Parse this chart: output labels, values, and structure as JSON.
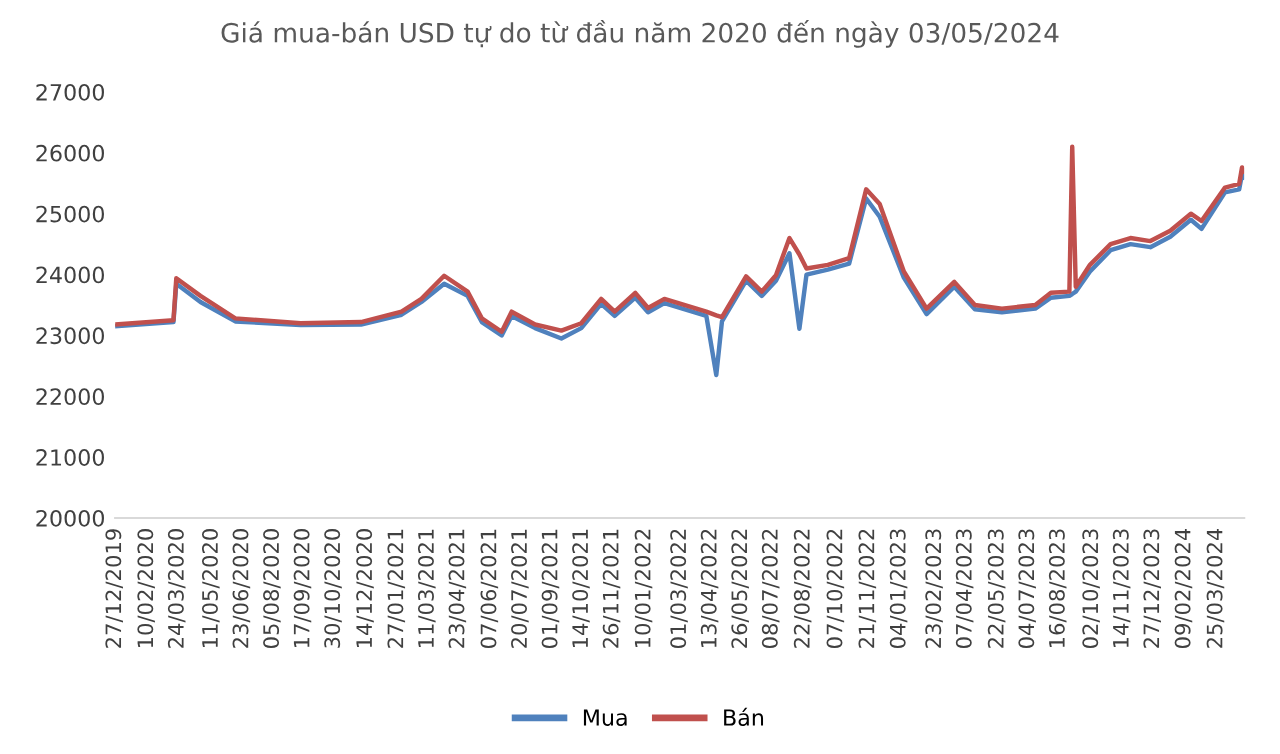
{
  "chart_data": {
    "type": "line",
    "title": "Giá mua-bán USD tự do từ đầu năm 2020 đến ngày 03/05/2024",
    "x": [
      "2019-12-27",
      "2020-03-18",
      "2020-03-22",
      "2020-04-25",
      "2020-06-13",
      "2020-09-13",
      "2020-12-07",
      "2021-02-02",
      "2021-03-02",
      "2021-04-03",
      "2021-05-06",
      "2021-05-26",
      "2021-06-23",
      "2021-07-07",
      "2021-08-09",
      "2021-09-15",
      "2021-10-13",
      "2021-11-10",
      "2021-11-29",
      "2021-12-28",
      "2022-01-15",
      "2022-02-07",
      "2022-04-07",
      "2022-04-21",
      "2022-04-29",
      "2022-06-02",
      "2022-06-24",
      "2022-07-14",
      "2022-08-02",
      "2022-08-16",
      "2022-08-26",
      "2022-09-25",
      "2022-10-25",
      "2022-11-18",
      "2022-12-07",
      "2023-01-10",
      "2023-02-11",
      "2023-03-22",
      "2023-04-20",
      "2023-05-28",
      "2023-07-14",
      "2023-08-05",
      "2023-08-31",
      "2023-09-04",
      "2023-09-09",
      "2023-09-29",
      "2023-10-28",
      "2023-11-25",
      "2023-12-23",
      "2024-01-20",
      "2024-02-18",
      "2024-03-04",
      "2024-04-06",
      "2024-04-26",
      "2024-04-30",
      "2024-05-03"
    ],
    "series": [
      {
        "name": "Mua",
        "color": "#4f81bd",
        "values": [
          23150,
          23220,
          23850,
          23550,
          23230,
          23170,
          23180,
          23340,
          23550,
          23850,
          23650,
          23220,
          23000,
          23320,
          23120,
          22950,
          23120,
          23520,
          23320,
          23620,
          23380,
          23530,
          23320,
          22350,
          23230,
          23900,
          23650,
          23900,
          24350,
          23110,
          24000,
          24080,
          24180,
          25250,
          24950,
          23950,
          23350,
          23800,
          23430,
          23380,
          23440,
          23620,
          23650,
          23680,
          23720,
          24050,
          24400,
          24500,
          24450,
          24620,
          24900,
          24750,
          25350,
          25400,
          25650,
          25600
        ]
      },
      {
        "name": "Bán",
        "color": "#c0504d",
        "values": [
          23180,
          23250,
          23940,
          23650,
          23280,
          23200,
          23220,
          23390,
          23600,
          23980,
          23720,
          23280,
          23060,
          23390,
          23180,
          23080,
          23200,
          23600,
          23390,
          23700,
          23450,
          23600,
          23390,
          23330,
          23300,
          23970,
          23720,
          23990,
          24600,
          24330,
          24100,
          24160,
          24270,
          25400,
          25160,
          24050,
          23440,
          23880,
          23500,
          23440,
          23500,
          23700,
          23720,
          26100,
          23800,
          24160,
          24500,
          24600,
          24550,
          24720,
          25000,
          24880,
          25430,
          25490,
          25760,
          25700
        ]
      }
    ],
    "xlim": [
      "2019-12-27",
      "2024-05-03"
    ],
    "xticks": [
      {
        "value": "2019-12-27",
        "label": "27/12/2019"
      },
      {
        "value": "2020-02-10",
        "label": "10/02/2020"
      },
      {
        "value": "2020-03-24",
        "label": "24/03/2020"
      },
      {
        "value": "2020-05-11",
        "label": "11/05/2020"
      },
      {
        "value": "2020-06-23",
        "label": "23/06/2020"
      },
      {
        "value": "2020-08-05",
        "label": "05/08/2020"
      },
      {
        "value": "2020-09-17",
        "label": "17/09/2020"
      },
      {
        "value": "2020-10-30",
        "label": "30/10/2020"
      },
      {
        "value": "2020-12-14",
        "label": "14/12/2020"
      },
      {
        "value": "2021-01-27",
        "label": "27/01/2021"
      },
      {
        "value": "2021-03-11",
        "label": "11/03/2021"
      },
      {
        "value": "2021-04-23",
        "label": "23/04/2021"
      },
      {
        "value": "2021-06-07",
        "label": "07/06/2021"
      },
      {
        "value": "2021-07-20",
        "label": "20/07/2021"
      },
      {
        "value": "2021-09-01",
        "label": "01/09/2021"
      },
      {
        "value": "2021-10-14",
        "label": "14/10/2021"
      },
      {
        "value": "2021-11-26",
        "label": "26/11/2021"
      },
      {
        "value": "2022-01-10",
        "label": "10/01/2022"
      },
      {
        "value": "2022-03-01",
        "label": "01/03/2022"
      },
      {
        "value": "2022-04-13",
        "label": "13/04/2022"
      },
      {
        "value": "2022-05-26",
        "label": "26/05/2022"
      },
      {
        "value": "2022-07-08",
        "label": "08/07/2022"
      },
      {
        "value": "2022-08-22",
        "label": "22/08/2022"
      },
      {
        "value": "2022-10-07",
        "label": "07/10/2022"
      },
      {
        "value": "2022-11-21",
        "label": "21/11/2022"
      },
      {
        "value": "2023-01-04",
        "label": "04/01/2023"
      },
      {
        "value": "2023-02-23",
        "label": "23/02/2023"
      },
      {
        "value": "2023-04-07",
        "label": "07/04/2023"
      },
      {
        "value": "2023-05-22",
        "label": "22/05/2023"
      },
      {
        "value": "2023-07-04",
        "label": "04/07/2023"
      },
      {
        "value": "2023-08-16",
        "label": "16/08/2023"
      },
      {
        "value": "2023-10-02",
        "label": "02/10/2023"
      },
      {
        "value": "2023-11-14",
        "label": "14/11/2023"
      },
      {
        "value": "2023-12-27",
        "label": "27/12/2023"
      },
      {
        "value": "2024-02-09",
        "label": "09/02/2024"
      },
      {
        "value": "2024-03-25",
        "label": "25/03/2024"
      }
    ],
    "ylim": [
      20000,
      27000
    ],
    "yticks": [
      20000,
      21000,
      22000,
      23000,
      24000,
      25000,
      26000,
      27000
    ],
    "grid": false,
    "legend": "bottom",
    "marker": "none",
    "line_style": "solid"
  }
}
